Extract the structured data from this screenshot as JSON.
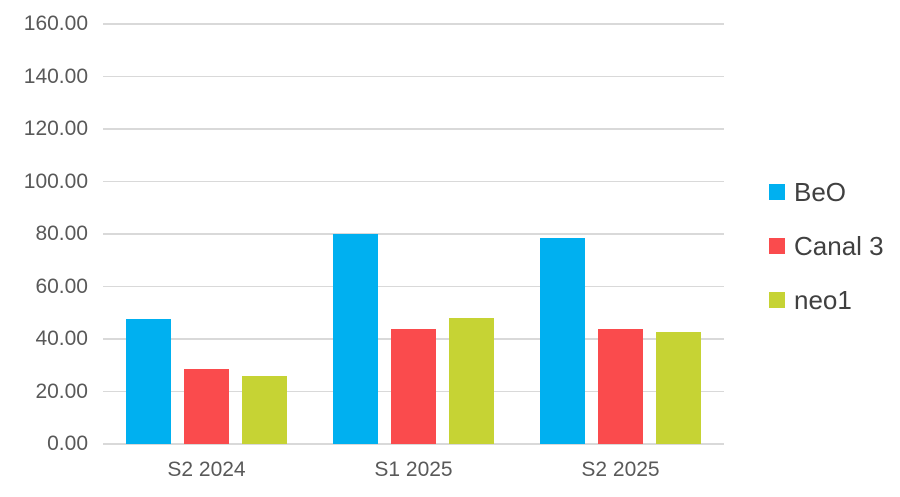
{
  "chart_data": {
    "type": "bar",
    "title": "",
    "xlabel": "",
    "ylabel": "",
    "categories": [
      "S2 2024",
      "S1 2025",
      "S2 2025"
    ],
    "series": [
      {
        "name": "BeO",
        "color": "#00B0F0",
        "values": [
          47.5,
          80.0,
          78.3
        ]
      },
      {
        "name": "Canal 3",
        "color": "#FA4B4D",
        "values": [
          28.5,
          44.0,
          43.7
        ]
      },
      {
        "name": "neo1",
        "color": "#C6D334",
        "values": [
          26.0,
          47.9,
          42.5
        ]
      }
    ],
    "y_axis": {
      "min": 0,
      "max": 160,
      "step": 20,
      "tick_labels": [
        "0.00",
        "20.00",
        "40.00",
        "60.00",
        "80.00",
        "100.00",
        "120.00",
        "140.00",
        "160.00"
      ]
    },
    "grid": true,
    "legend_position": "right",
    "colors": {
      "gridline": "#D9D9D9",
      "axis_label": "#595959",
      "legend_text": "#404040",
      "background": "#FFFFFF"
    }
  }
}
